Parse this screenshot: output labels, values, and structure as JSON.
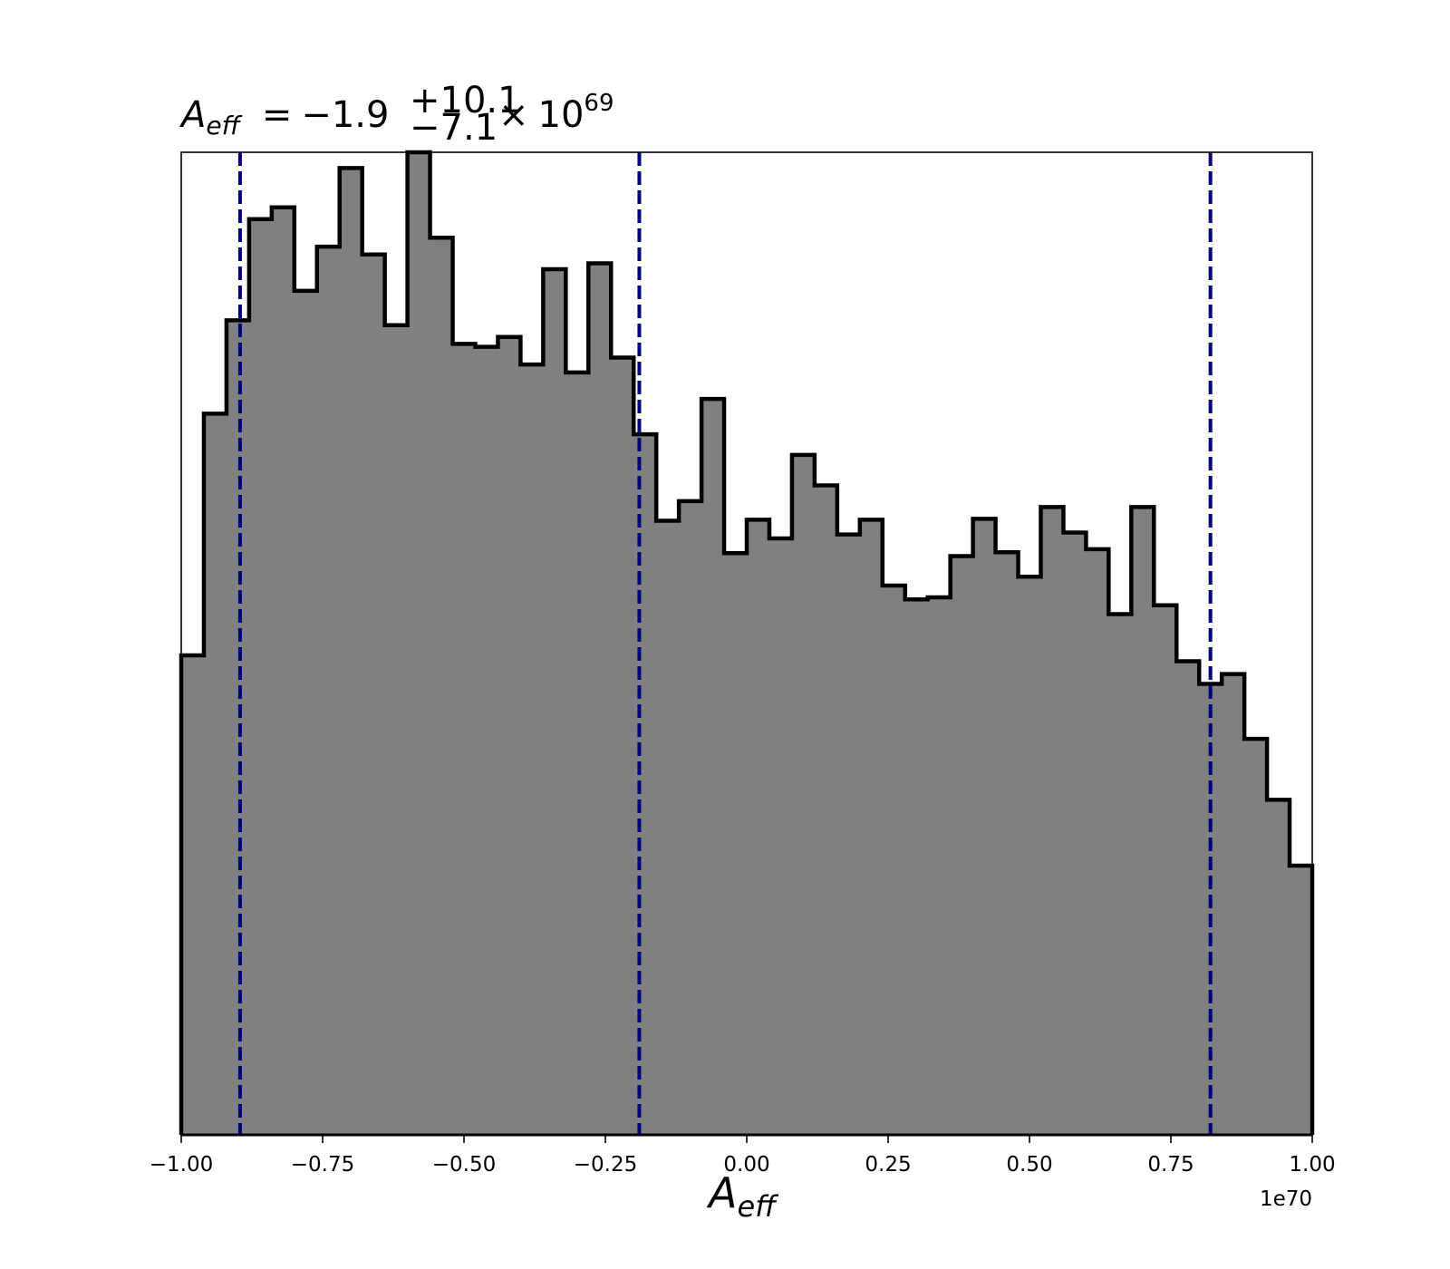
{
  "chart_data": {
    "type": "histogram",
    "title": {
      "symbol": "A",
      "symbol_sub": "eff",
      "equals": "=",
      "value": "−1.9",
      "upper_err": "+10.1",
      "lower_err": "−7.1",
      "times": "×",
      "base": "10",
      "exponent": "69"
    },
    "xlabel": {
      "symbol": "A",
      "sub": "eff"
    },
    "x_offset_label": "1e70",
    "xlim": [
      -1.0,
      1.0
    ],
    "ylim": [
      0,
      1.0
    ],
    "y_axis_visible": false,
    "grid": false,
    "bin_edges": [
      -1.0,
      -0.96,
      -0.92,
      -0.88,
      -0.84,
      -0.8,
      -0.76,
      -0.72,
      -0.68,
      -0.64,
      -0.6,
      -0.56,
      -0.52,
      -0.48,
      -0.44,
      -0.4,
      -0.36,
      -0.32,
      -0.28,
      -0.24,
      -0.2,
      -0.16,
      -0.12,
      -0.08,
      -0.04,
      0.0,
      0.04,
      0.08,
      0.12,
      0.16,
      0.2,
      0.24,
      0.28,
      0.32,
      0.36,
      0.4,
      0.44,
      0.48,
      0.52,
      0.56,
      0.6,
      0.64,
      0.68,
      0.72,
      0.76,
      0.8,
      0.84,
      0.88,
      0.92,
      0.96,
      1.0
    ],
    "bin_values": [
      0.488,
      0.734,
      0.829,
      0.932,
      0.944,
      0.859,
      0.904,
      0.984,
      0.896,
      0.824,
      1.0,
      0.913,
      0.805,
      0.802,
      0.812,
      0.784,
      0.881,
      0.776,
      0.887,
      0.791,
      0.713,
      0.625,
      0.645,
      0.749,
      0.592,
      0.626,
      0.607,
      0.692,
      0.661,
      0.611,
      0.626,
      0.559,
      0.545,
      0.547,
      0.589,
      0.627,
      0.593,
      0.568,
      0.639,
      0.613,
      0.596,
      0.53,
      0.639,
      0.539,
      0.482,
      0.459,
      0.469,
      0.403,
      0.341,
      0.274
    ],
    "vertical_lines": [
      -0.896,
      -0.19,
      0.82
    ],
    "x_ticks": [
      -1.0,
      -0.75,
      -0.5,
      -0.25,
      0.0,
      0.25,
      0.5,
      0.75,
      1.0
    ],
    "x_tick_labels": [
      "−1.00",
      "−0.75",
      "−0.50",
      "−0.25",
      "0.00",
      "0.25",
      "0.50",
      "0.75",
      "1.00"
    ],
    "colors": {
      "fill": "#808080",
      "outline": "#000000",
      "vline": "#00007f"
    }
  }
}
